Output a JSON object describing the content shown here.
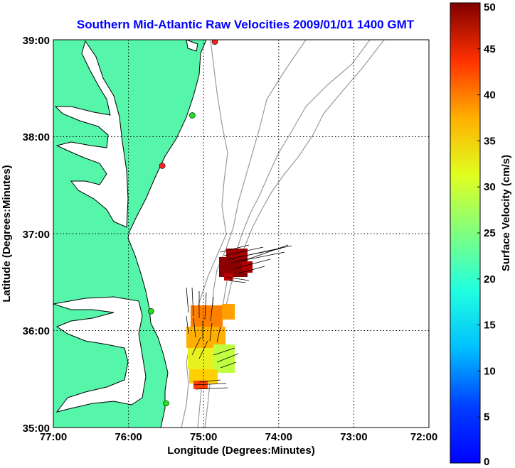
{
  "title": "Southern Mid-Atlantic Raw Velocities 2009/01/01 1400 GMT",
  "xlabel": "Longitude (Degrees:Minutes)",
  "ylabel": "Latitude (Degrees:Minutes)",
  "colorbar_label": "Surface Velocity (cm/s)",
  "x_ticks": [
    "77:00",
    "76:00",
    "75:00",
    "74:00",
    "73:00",
    "72:00"
  ],
  "y_ticks": [
    "39:00",
    "38:00",
    "37:00",
    "36:00",
    "35:00"
  ],
  "colorbar_ticks": [
    "50",
    "45",
    "40",
    "35",
    "30",
    "25",
    "20",
    "15",
    "10",
    "5",
    "0"
  ],
  "colors": {
    "land": "#55f5aa",
    "title": "#0000ff",
    "bathymetry": "#9a9a9a"
  },
  "chart_data": {
    "type": "heatmap",
    "xlim": [
      -77,
      -72
    ],
    "ylim": [
      35,
      39
    ],
    "clim": [
      0,
      50
    ],
    "colormap": "jet",
    "grid": true,
    "stations": [
      {
        "lon": -74.85,
        "lat": 38.98,
        "status": "red"
      },
      {
        "lon": -75.15,
        "lat": 38.22,
        "status": "green"
      },
      {
        "lon": -75.55,
        "lat": 37.7,
        "status": "red"
      },
      {
        "lon": -75.7,
        "lat": 36.2,
        "status": "green"
      },
      {
        "lon": -75.5,
        "lat": 35.25,
        "status": "green"
      }
    ]
  }
}
